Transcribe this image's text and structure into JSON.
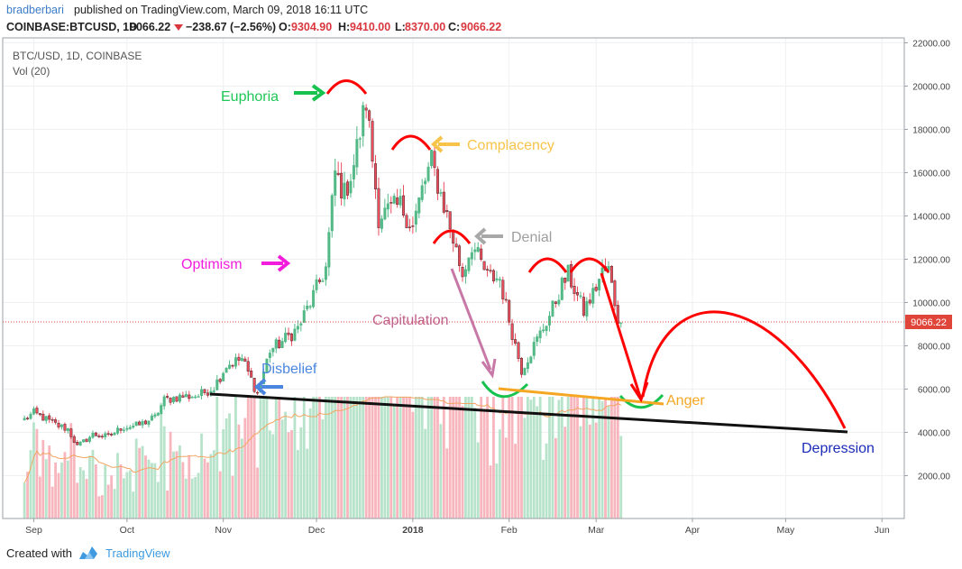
{
  "header": {
    "author": "bradberbari",
    "published_text": "published on TradingView.com, March 09, 2018 16:11 UTC",
    "symbol_text": "COINBASE:BTCUSD, 1D",
    "last_price": "9066.22",
    "change_text": "−238.67 (−2.56%)",
    "o_label": "O:",
    "o_value": "9304.90",
    "h_label": "H:",
    "h_value": "9410.00",
    "l_label": "L:",
    "l_value": "8370.00",
    "c_label": "C:",
    "c_value": "9066.22"
  },
  "legend": {
    "series_name": "BTC/USD, 1D, COINBASE",
    "volume_name": "Vol (20)"
  },
  "price_tag": "9066.22",
  "footer": {
    "created_with": "Created with",
    "brand": "TradingView"
  },
  "colors": {
    "up": "#53b987",
    "down": "#eb4d5c",
    "up_vol": "#b7e3cb",
    "down_vol": "#f7b6bd",
    "annotation_red": "#ff0000",
    "annotation_green": "#17c24f",
    "last_price_tag": "#e0453a"
  },
  "annotations": [
    {
      "text": "Euphoria",
      "color": "#1fc756"
    },
    {
      "text": "Complacency",
      "color": "#f7c34a"
    },
    {
      "text": "Denial",
      "color": "#9e9e9e"
    },
    {
      "text": "Optimism",
      "color": "#f21ddc"
    },
    {
      "text": "Capitulation",
      "color": "#c0608a"
    },
    {
      "text": "Disbelief",
      "color": "#4a86e0"
    },
    {
      "text": "Anger",
      "color": "#f5a623"
    },
    {
      "text": "Depression",
      "color": "#1a2bb8"
    }
  ],
  "chart_data": {
    "type": "candlestick",
    "title": "BTC/USD, 1D, COINBASE",
    "x_tick_labels": [
      "Sep",
      "Oct",
      "Nov",
      "Dec",
      "2018",
      "Feb",
      "Mar",
      "Apr",
      "May",
      "Jun"
    ],
    "y_tick_labels": [
      "2000.00",
      "4000.00",
      "6000.00",
      "8000.00",
      "10000.00",
      "12000.00",
      "14000.00",
      "16000.00",
      "18000.00",
      "20000.00",
      "22000.00"
    ],
    "ylim": [
      0,
      22500
    ],
    "grid": true,
    "last_price": 9066.22,
    "price_path": [
      [
        "2017-08-29",
        4600
      ],
      [
        "2017-09-01",
        4900
      ],
      [
        "2017-09-05",
        4600
      ],
      [
        "2017-09-09",
        4300
      ],
      [
        "2017-09-12",
        4150
      ],
      [
        "2017-09-15",
        3350
      ],
      [
        "2017-09-20",
        3900
      ],
      [
        "2017-09-25",
        3800
      ],
      [
        "2017-09-29",
        4200
      ],
      [
        "2017-10-05",
        4350
      ],
      [
        "2017-10-10",
        4700
      ],
      [
        "2017-10-13",
        5500
      ],
      [
        "2017-10-18",
        5650
      ],
      [
        "2017-10-24",
        5700
      ],
      [
        "2017-10-29",
        6100
      ],
      [
        "2017-11-02",
        7100
      ],
      [
        "2017-11-07",
        7400
      ],
      [
        "2017-11-12",
        5800
      ],
      [
        "2017-11-16",
        7800
      ],
      [
        "2017-11-20",
        8200
      ],
      [
        "2017-11-25",
        8800
      ],
      [
        "2017-11-29",
        10000
      ],
      [
        "2017-12-04",
        11600
      ],
      [
        "2017-12-07",
        16000
      ],
      [
        "2017-12-10",
        15000
      ],
      [
        "2017-12-13",
        16400
      ],
      [
        "2017-12-17",
        19300
      ],
      [
        "2017-12-21",
        14000
      ],
      [
        "2017-12-24",
        14200
      ],
      [
        "2017-12-28",
        14500
      ],
      [
        "2018-01-01",
        13500
      ],
      [
        "2018-01-04",
        15200
      ],
      [
        "2018-01-07",
        16500
      ],
      [
        "2018-01-12",
        14000
      ],
      [
        "2018-01-17",
        11300
      ],
      [
        "2018-01-20",
        12700
      ],
      [
        "2018-01-25",
        11200
      ],
      [
        "2018-01-29",
        11100
      ],
      [
        "2018-02-01",
        9200
      ],
      [
        "2018-02-05",
        6900
      ],
      [
        "2018-02-09",
        8000
      ],
      [
        "2018-02-14",
        9400
      ],
      [
        "2018-02-18",
        10800
      ],
      [
        "2018-02-20",
        11300
      ],
      [
        "2018-02-25",
        9600
      ],
      [
        "2018-02-28",
        10400
      ],
      [
        "2018-03-03",
        11400
      ],
      [
        "2018-03-05",
        11500
      ],
      [
        "2018-03-08",
        9300
      ],
      [
        "2018-03-09",
        9066
      ]
    ],
    "volume_axis_max": 9000,
    "volume_ma_label": "Vol (20)"
  }
}
